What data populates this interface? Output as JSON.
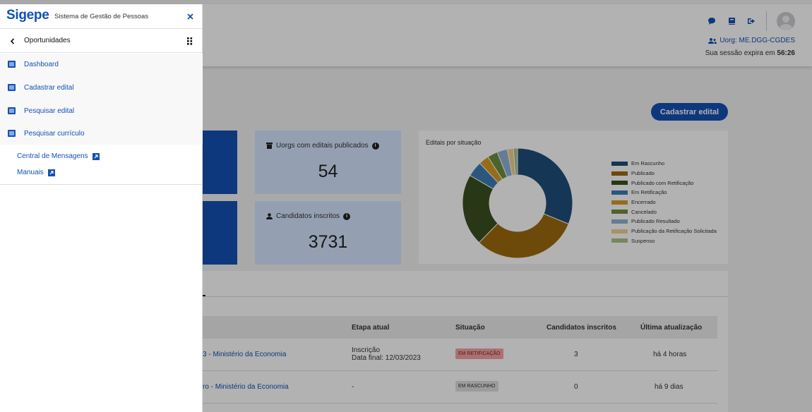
{
  "header": {
    "uorg_label": "Uorg: ME.DGG-CGDES",
    "session_prefix": "Sua sessão expira em",
    "session_time": "56:26"
  },
  "main": {
    "cadastrar_button": "Cadastrar edital",
    "cards": {
      "uorgs_title": "Uorgs com editais publicados",
      "uorgs_value": "54",
      "candidatos_title": "Candidatos inscritos",
      "candidatos_value": "3731"
    }
  },
  "chart_data": {
    "type": "pie",
    "donut": true,
    "title": "Editais por situação",
    "categories": [
      "Em Rascunho",
      "Publicado",
      "Publicado com Retificação",
      "Em Retificação",
      "Encerrado",
      "Cancelado",
      "Publicado Resultado",
      "Publicação da Retificação Solicitada",
      "Suspenso"
    ],
    "values": [
      31,
      31,
      21,
      4.5,
      3,
      3,
      3,
      1.8,
      1.2
    ],
    "colors": [
      "#1f4e79",
      "#9c6a0e",
      "#3a4f1f",
      "#3e7bb5",
      "#d49c28",
      "#6f8f3f",
      "#92b1d5",
      "#f0d18e",
      "#a8c38a"
    ],
    "legend_position": "right"
  },
  "table": {
    "headers": [
      "Etapa atual",
      "Situação",
      "Candidatos inscritos",
      "Última atualização"
    ],
    "rows": [
      {
        "title": "3 - Ministério da Economia",
        "etapa_line1": "Inscrição",
        "etapa_line2": "Data final: 12/03/2023",
        "situacao": "EM RETIFICAÇÃO",
        "candidatos": "3",
        "atualizacao": "há 4 horas"
      },
      {
        "title": "ro - Ministério da Economia",
        "etapa_line1": "-",
        "etapa_line2": "",
        "situacao": "EM RASCUNHO",
        "candidatos": "0",
        "atualizacao": "há 9 dias"
      }
    ]
  },
  "drawer": {
    "logo": "Sigepe",
    "logo_subtitle": "Sistema de Gestão de Pessoas",
    "section": "Oportunidades",
    "menu": [
      {
        "label": "Dashboard"
      },
      {
        "label": "Cadastrar edital"
      },
      {
        "label": "Pesquisar edital"
      },
      {
        "label": "Pesquisar currículo"
      }
    ],
    "links": [
      {
        "label": "Central de Mensagens"
      },
      {
        "label": "Manuais"
      }
    ]
  },
  "icons": {
    "chat": "chat-icon",
    "book": "book-icon",
    "logout": "logout-icon",
    "close": "close-icon",
    "back": "chevron-left-icon",
    "grid": "grid-dots-icon",
    "list": "list-icon",
    "external": "external-link-icon"
  }
}
